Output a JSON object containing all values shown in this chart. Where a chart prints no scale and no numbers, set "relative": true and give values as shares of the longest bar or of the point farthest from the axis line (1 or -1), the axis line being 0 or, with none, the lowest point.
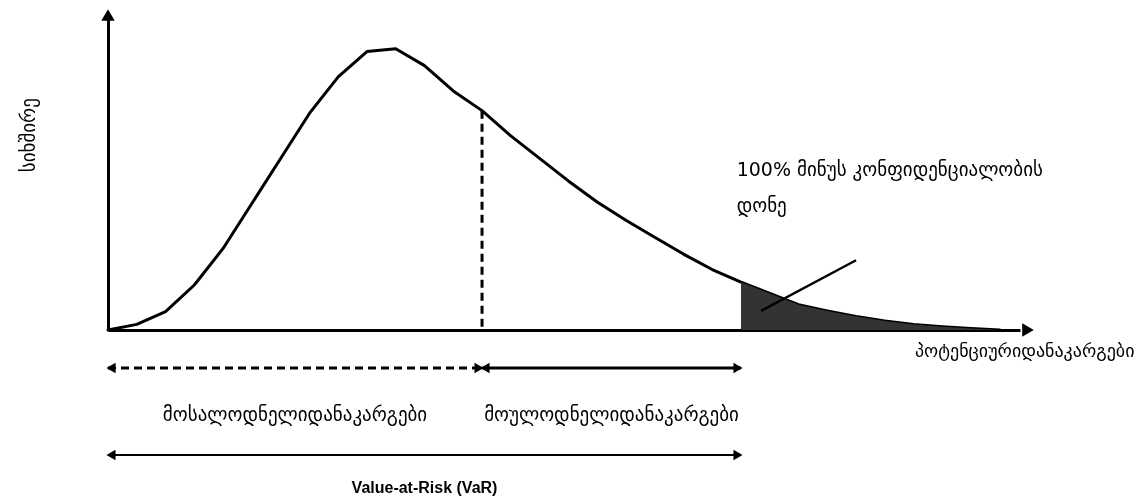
{
  "chart_data": {
    "type": "line",
    "relative": true,
    "tick_labels": false,
    "grid": false,
    "marker": "none",
    "ylabel": "სიხშირე",
    "xlabel": "პოტენციურიდანაკარგები",
    "categories": [
      null,
      null,
      null,
      null,
      null,
      null,
      null,
      null,
      null,
      null,
      null,
      null,
      null,
      null,
      null,
      null,
      null,
      null,
      null,
      null,
      null,
      null,
      null,
      null,
      null,
      null,
      null,
      null,
      null,
      null,
      null,
      null
    ],
    "series": [
      {
        "color": "#000000",
        "values": [
          0,
          0.02,
          0.065,
          0.16,
          0.29,
          0.45,
          0.61,
          0.77,
          0.9,
          0.99,
          1,
          0.94,
          0.85,
          0.78,
          0.69,
          0.61,
          0.53,
          0.455,
          0.39,
          0.33,
          0.27,
          0.215,
          0.17,
          0.13,
          0.09,
          0.068,
          0.048,
          0.032,
          0.02,
          0.012,
          0.005,
          0
        ]
      },
      {
        "type": "area",
        "color": "#333333",
        "values": [
          null,
          null,
          null,
          null,
          null,
          null,
          null,
          null,
          null,
          null,
          null,
          null,
          null,
          null,
          null,
          null,
          null,
          null,
          null,
          null,
          null,
          null,
          0.17,
          0.13,
          0.09,
          0.068,
          0.048,
          0.032,
          0.02,
          0.012,
          0.005,
          0
        ]
      }
    ],
    "annotations": [
      "100% მინუს კონფიდენციალობის დონე",
      "მოსალოდნელიდანაკარგები",
      "მოულოდნელიდანაკარგები",
      "Value-at-Risk (VaR)"
    ]
  }
}
